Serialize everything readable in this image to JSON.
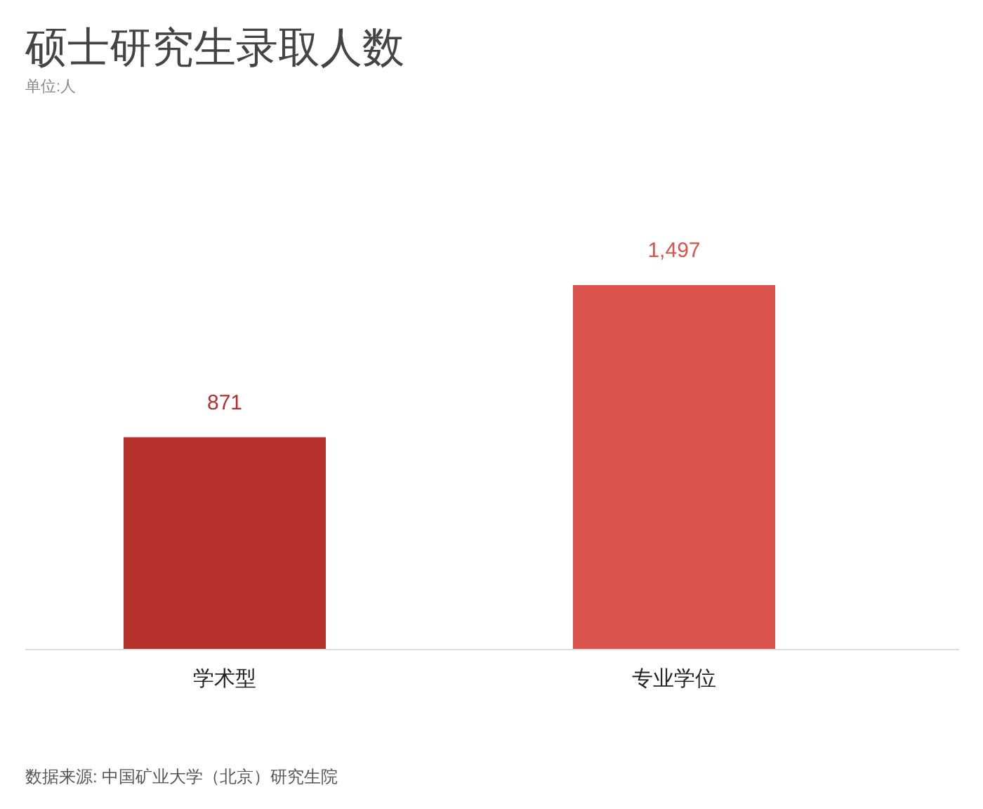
{
  "chart_data": {
    "type": "bar",
    "title": "硕士研究生录取人数",
    "subtitle": "单位:人",
    "categories": [
      "学术型",
      "专业学位"
    ],
    "values": [
      871,
      1497
    ],
    "colors": [
      "#b5302b",
      "#d9534c"
    ],
    "value_labels": [
      "871",
      "1,497"
    ],
    "annotations": [
      "数据来源: 中国矿业大学（北京）研究生院"
    ]
  }
}
